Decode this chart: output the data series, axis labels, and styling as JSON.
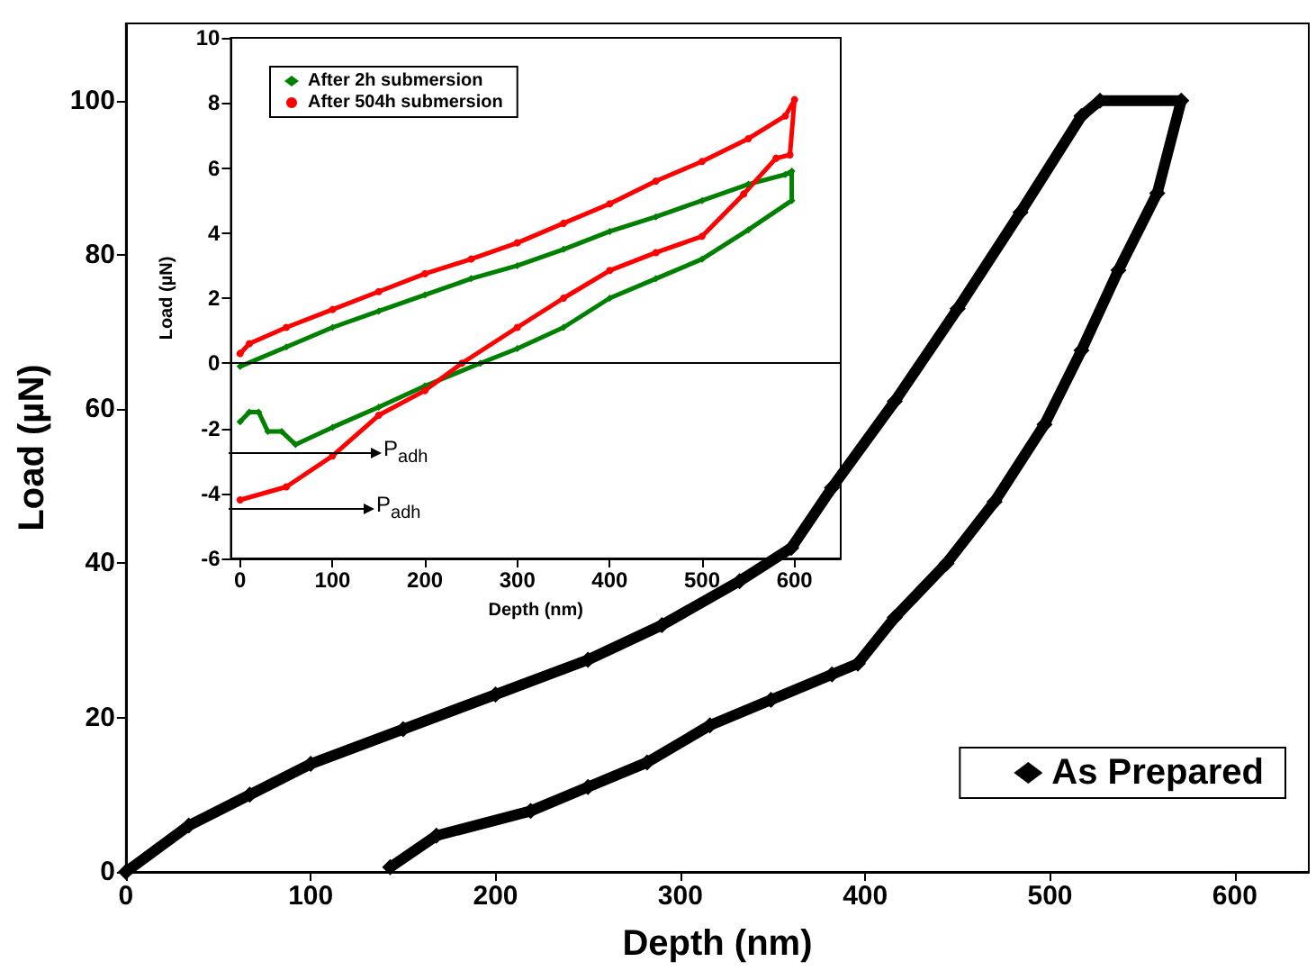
{
  "chart_data": [
    {
      "type": "line",
      "xlabel": "Depth (nm)",
      "ylabel": "Load (µN)",
      "xlim": [
        0,
        640
      ],
      "ylim": [
        0,
        110
      ],
      "xticks": [
        0,
        100,
        200,
        300,
        400,
        500,
        600
      ],
      "yticks": [
        0,
        20,
        40,
        60,
        80,
        100
      ],
      "grid": false,
      "legend": "bottom right",
      "marker": "diamond",
      "series": [
        {
          "name": "As Prepared",
          "color": "#000000",
          "x": [
            0,
            34,
            67,
            100,
            150,
            200,
            250,
            290,
            332,
            360,
            382,
            416,
            450,
            484,
            517,
            527,
            571,
            558,
            537,
            517,
            497,
            470,
            444,
            416,
            396,
            382,
            349,
            316,
            282,
            250,
            219,
            168,
            143
          ],
          "values": [
            0,
            6,
            10,
            14,
            18.5,
            23,
            27.5,
            32,
            37.7,
            42,
            49.8,
            61,
            73,
            85.5,
            98,
            100,
            100,
            88,
            78,
            67.6,
            58,
            48,
            40,
            33,
            27,
            25.6,
            22.3,
            19,
            14.2,
            11,
            7.9,
            4.7,
            0.6
          ]
        }
      ]
    },
    {
      "type": "line",
      "xlabel": "Depth (nm)",
      "ylabel": "Load (µN)",
      "xlim": [
        -10,
        650
      ],
      "ylim": [
        -6,
        10
      ],
      "xticks": [
        0,
        100,
        200,
        300,
        400,
        500,
        600
      ],
      "yticks": [
        -6,
        -4,
        -2,
        0,
        2,
        4,
        6,
        8,
        10
      ],
      "grid": false,
      "legend": "top left",
      "ref_lines": [
        {
          "axis": "y",
          "value": 0,
          "color": "#000000"
        }
      ],
      "annotations": [
        "P$_{adh}$",
        "P$_{adh}$"
      ],
      "series": [
        {
          "name": "After 2h submersion",
          "color": "#008000",
          "marker": "diamond",
          "x": [
            0,
            50,
            100,
            150,
            200,
            250,
            300,
            350,
            400,
            450,
            500,
            550,
            590,
            597,
            597,
            550,
            500,
            450,
            400,
            350,
            300,
            260,
            200,
            150,
            100,
            60,
            45,
            30,
            20,
            10,
            0
          ],
          "values": [
            -0.1,
            0.5,
            1.1,
            1.6,
            2.1,
            2.6,
            3.0,
            3.5,
            4.05,
            4.5,
            5.0,
            5.5,
            5.8,
            5.9,
            5.0,
            4.1,
            3.2,
            2.6,
            2.0,
            1.1,
            0.45,
            0,
            -0.7,
            -1.35,
            -1.97,
            -2.5,
            -2.1,
            -2.1,
            -1.5,
            -1.5,
            -1.8
          ]
        },
        {
          "name": "After 504h submersion",
          "color": "#ff0000",
          "marker": "circle",
          "x": [
            0,
            10,
            50,
            100,
            150,
            200,
            250,
            300,
            350,
            400,
            450,
            500,
            550,
            590,
            600,
            595,
            580,
            545,
            500,
            450,
            400,
            350,
            300,
            240,
            200,
            150,
            100,
            50,
            0
          ],
          "values": [
            0.3,
            0.6,
            1.1,
            1.65,
            2.2,
            2.75,
            3.2,
            3.7,
            4.3,
            4.9,
            5.6,
            6.2,
            6.9,
            7.6,
            8.1,
            6.4,
            6.3,
            5.2,
            3.9,
            3.4,
            2.85,
            2.0,
            1.1,
            0,
            -0.84,
            -1.6,
            -2.85,
            -3.8,
            -4.2
          ]
        }
      ]
    }
  ]
}
